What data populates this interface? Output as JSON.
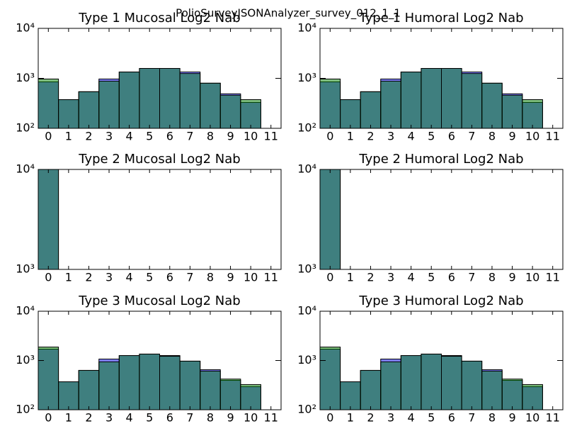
{
  "title": "PolioSurveyJSONAnalyzer_survey_012_1_1",
  "chart_data": [
    {
      "type": "bar",
      "title": "Type 1 Mucosal Log2 Nab",
      "log": true,
      "x": [
        0,
        1,
        2,
        3,
        4,
        5,
        6,
        7,
        8,
        9,
        10
      ],
      "xlim": [
        -0.5,
        11.5
      ],
      "xticks": [
        0,
        1,
        2,
        3,
        4,
        5,
        6,
        7,
        8,
        9,
        10,
        11
      ],
      "ylim": [
        100,
        10000
      ],
      "yticks": [
        {
          "value": 100,
          "label": "10²"
        },
        {
          "value": 1000,
          "label": "10³"
        },
        {
          "value": 10000,
          "label": "10⁴"
        }
      ],
      "series": [
        {
          "color": "#0000ff",
          "values": [
            850,
            375,
            540,
            970,
            1340,
            1580,
            1580,
            1340,
            800,
            490,
            330
          ]
        },
        {
          "color": "#008000",
          "values": [
            970,
            375,
            540,
            880,
            1340,
            1580,
            1580,
            1250,
            800,
            460,
            375
          ]
        }
      ]
    },
    {
      "type": "bar",
      "title": "Type 1 Humoral Log2 Nab",
      "log": true,
      "x": [
        0,
        1,
        2,
        3,
        4,
        5,
        6,
        7,
        8,
        9,
        10
      ],
      "xlim": [
        -0.5,
        11.5
      ],
      "xticks": [
        0,
        1,
        2,
        3,
        4,
        5,
        6,
        7,
        8,
        9,
        10,
        11
      ],
      "ylim": [
        100,
        10000
      ],
      "yticks": [
        {
          "value": 100,
          "label": "10²"
        },
        {
          "value": 1000,
          "label": "10³"
        },
        {
          "value": 10000,
          "label": "10⁴"
        }
      ],
      "series": [
        {
          "color": "#0000ff",
          "values": [
            850,
            375,
            540,
            970,
            1340,
            1580,
            1580,
            1340,
            800,
            490,
            330
          ]
        },
        {
          "color": "#008000",
          "values": [
            970,
            375,
            540,
            880,
            1340,
            1580,
            1580,
            1250,
            800,
            460,
            375
          ]
        }
      ]
    },
    {
      "type": "bar",
      "title": "Type 2 Mucosal Log2 Nab",
      "log": true,
      "x": [
        0,
        1,
        2,
        3,
        4,
        5,
        6,
        7,
        8,
        9,
        10
      ],
      "xlim": [
        -0.5,
        11.5
      ],
      "xticks": [
        0,
        1,
        2,
        3,
        4,
        5,
        6,
        7,
        8,
        9,
        10,
        11
      ],
      "ylim": [
        1000,
        10000
      ],
      "yticks": [
        {
          "value": 1000,
          "label": "10³"
        },
        {
          "value": 10000,
          "label": "10⁴"
        }
      ],
      "series": [
        {
          "color": "#0000ff",
          "values": [
            10000,
            0,
            0,
            0,
            0,
            0,
            0,
            0,
            0,
            0,
            0
          ]
        },
        {
          "color": "#008000",
          "values": [
            10000,
            0,
            0,
            0,
            0,
            0,
            0,
            0,
            0,
            0,
            0
          ]
        }
      ]
    },
    {
      "type": "bar",
      "title": "Type 2 Humoral Log2 Nab",
      "log": true,
      "x": [
        0,
        1,
        2,
        3,
        4,
        5,
        6,
        7,
        8,
        9,
        10
      ],
      "xlim": [
        -0.5,
        11.5
      ],
      "xticks": [
        0,
        1,
        2,
        3,
        4,
        5,
        6,
        7,
        8,
        9,
        10,
        11
      ],
      "ylim": [
        1000,
        10000
      ],
      "yticks": [
        {
          "value": 1000,
          "label": "10³"
        },
        {
          "value": 10000,
          "label": "10⁴"
        }
      ],
      "series": [
        {
          "color": "#0000ff",
          "values": [
            10000,
            0,
            0,
            0,
            0,
            0,
            0,
            0,
            0,
            0,
            0
          ]
        },
        {
          "color": "#008000",
          "values": [
            10000,
            0,
            0,
            0,
            0,
            0,
            0,
            0,
            0,
            0,
            0
          ]
        }
      ]
    },
    {
      "type": "bar",
      "title": "Type 3 Mucosal Log2 Nab",
      "log": true,
      "x": [
        0,
        1,
        2,
        3,
        4,
        5,
        6,
        7,
        8,
        9,
        10
      ],
      "xlim": [
        -0.5,
        11.5
      ],
      "xticks": [
        0,
        1,
        2,
        3,
        4,
        5,
        6,
        7,
        8,
        9,
        10,
        11
      ],
      "ylim": [
        100,
        10000
      ],
      "yticks": [
        {
          "value": 100,
          "label": "10²"
        },
        {
          "value": 1000,
          "label": "10³"
        },
        {
          "value": 10000,
          "label": "10⁴"
        }
      ],
      "series": [
        {
          "color": "#0000ff",
          "values": [
            1700,
            370,
            630,
            1070,
            1260,
            1350,
            1260,
            970,
            650,
            395,
            295
          ]
        },
        {
          "color": "#008000",
          "values": [
            1876,
            370,
            630,
            940,
            1260,
            1350,
            1220,
            970,
            610,
            420,
            325
          ]
        }
      ]
    },
    {
      "type": "bar",
      "title": "Type 3 Humoral Log2 Nab",
      "log": true,
      "x": [
        0,
        1,
        2,
        3,
        4,
        5,
        6,
        7,
        8,
        9,
        10
      ],
      "xlim": [
        -0.5,
        11.5
      ],
      "xticks": [
        0,
        1,
        2,
        3,
        4,
        5,
        6,
        7,
        8,
        9,
        10,
        11
      ],
      "ylim": [
        100,
        10000
      ],
      "yticks": [
        {
          "value": 100,
          "label": "10²"
        },
        {
          "value": 1000,
          "label": "10³"
        },
        {
          "value": 10000,
          "label": "10⁴"
        }
      ],
      "series": [
        {
          "color": "#0000ff",
          "values": [
            1700,
            370,
            630,
            1070,
            1260,
            1350,
            1260,
            970,
            650,
            395,
            295
          ]
        },
        {
          "color": "#008000",
          "values": [
            1876,
            370,
            630,
            940,
            1260,
            1350,
            1220,
            970,
            610,
            420,
            325
          ]
        }
      ]
    }
  ]
}
